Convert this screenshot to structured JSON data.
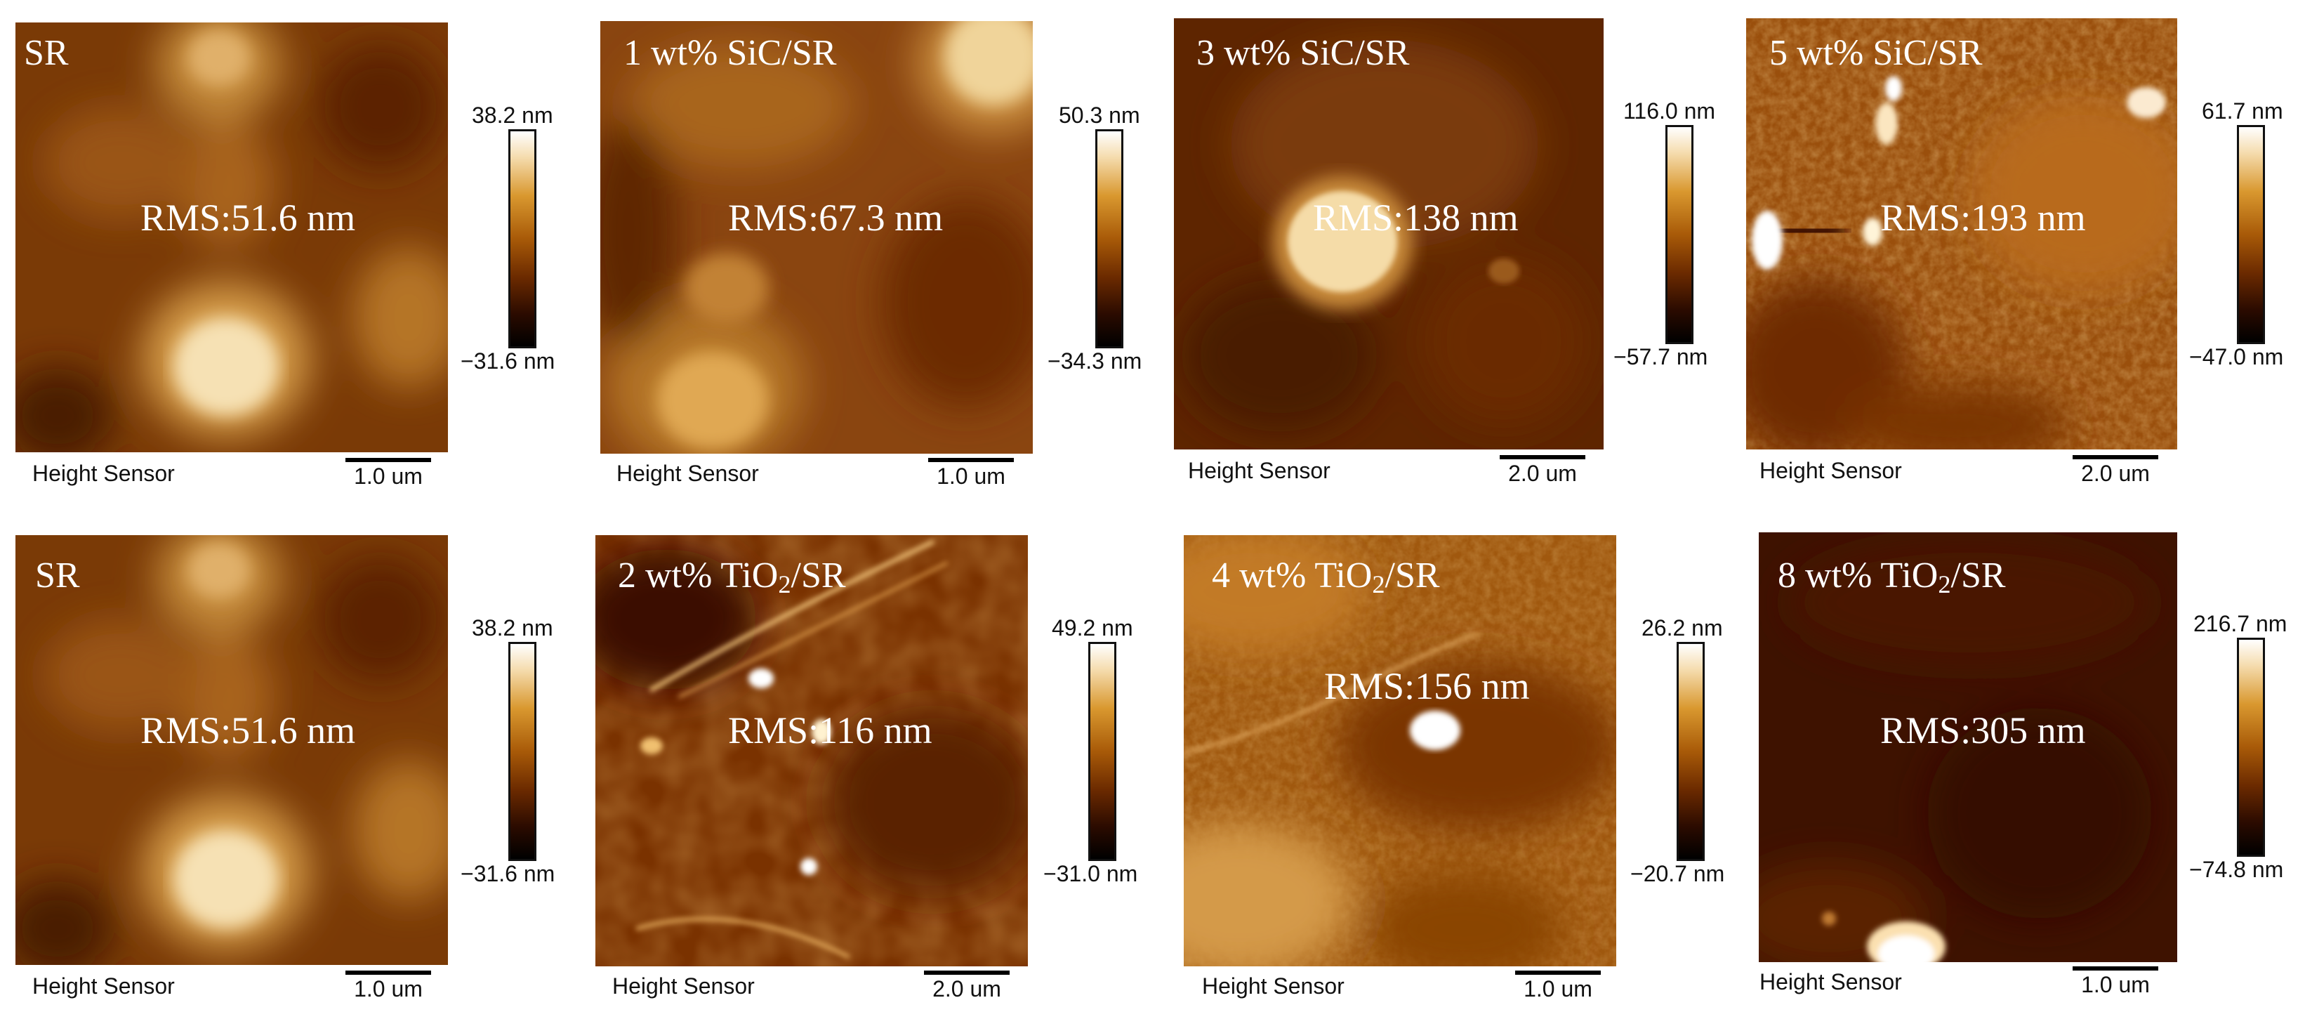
{
  "height_sensor_label": "Height Sensor",
  "panels": [
    {
      "label": "SR",
      "rms": "RMS:51.6 nm",
      "scale": "1.0 um",
      "cmax": "38.2 nm",
      "cmin": "−31.6 nm"
    },
    {
      "label": "1 wt% SiC/SR",
      "rms": "RMS:67.3 nm",
      "scale": "1.0 um",
      "cmax": "50.3 nm",
      "cmin": "−34.3 nm"
    },
    {
      "label": "3 wt% SiC/SR",
      "rms": "RMS:138 nm",
      "scale": "2.0 um",
      "cmax": "116.0 nm",
      "cmin": "−57.7 nm"
    },
    {
      "label": "5 wt% SiC/SR",
      "rms": "RMS:193 nm",
      "scale": "2.0 um",
      "cmax": "61.7 nm",
      "cmin": "−47.0 nm"
    },
    {
      "label": "SR",
      "rms": "RMS:51.6 nm",
      "scale": "1.0 um",
      "cmax": "38.2 nm",
      "cmin": "−31.6 nm"
    },
    {
      "label_pre": "2 wt% TiO",
      "label_sub": "2",
      "label_post": "/SR",
      "rms": "RMS:116 nm",
      "scale": "2.0 um",
      "cmax": "49.2 nm",
      "cmin": "−31.0 nm"
    },
    {
      "label_pre": "4 wt% TiO",
      "label_sub": "2",
      "label_post": "/SR",
      "rms": "RMS:156 nm",
      "scale": "1.0 um",
      "cmax": "26.2 nm",
      "cmin": "−20.7 nm"
    },
    {
      "label_pre": "8 wt% TiO",
      "label_sub": "2",
      "label_post": "/SR",
      "rms": "RMS:305 nm",
      "scale": "1.0 um",
      "cmax": "216.7 nm",
      "cmin": "−74.8 nm"
    }
  ]
}
